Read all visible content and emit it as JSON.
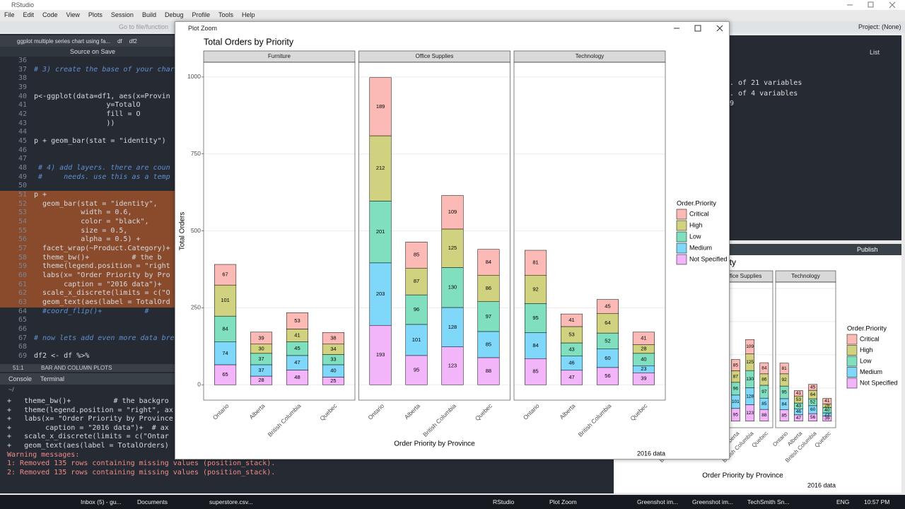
{
  "app_title": "RStudio",
  "menu": [
    "File",
    "Edit",
    "Code",
    "View",
    "Plots",
    "Session",
    "Build",
    "Debug",
    "Profile",
    "Tools",
    "Help"
  ],
  "toolbar": {
    "goto": "Go to file/function",
    "project": "Project: (None)"
  },
  "editor": {
    "tabs": [
      "ggplot multiple series chart using fa...",
      "df",
      "df2"
    ],
    "source_on_save": "Source on Save",
    "lines": [
      {
        "n": 36
      },
      {
        "n": 37,
        "code": "# 3) create the base of your char"
      },
      {
        "n": 38
      },
      {
        "n": 39
      },
      {
        "n": 40,
        "code": "p<-ggplot(data=df1, aes(x=Provin"
      },
      {
        "n": 41,
        "code": "                 y=TotalO"
      },
      {
        "n": 42,
        "code": "                 fill = O"
      },
      {
        "n": 43,
        "code": "                 ))"
      },
      {
        "n": 44
      },
      {
        "n": 45,
        "code": "p + geom_bar(stat = \"identity\")"
      },
      {
        "n": 46
      },
      {
        "n": 47
      },
      {
        "n": 48,
        "code": " # 4) add layers. there are coun"
      },
      {
        "n": 49,
        "code": " #     needs. use this as a temp"
      },
      {
        "n": 50
      },
      {
        "n": 51,
        "code": "p +",
        "selected": true
      },
      {
        "n": 52,
        "code": "  geom_bar(stat = \"identity\", ",
        "selected": true
      },
      {
        "n": 53,
        "code": "           width = 0.6,",
        "selected": true
      },
      {
        "n": 54,
        "code": "           color = \"black\",",
        "selected": true
      },
      {
        "n": 55,
        "code": "           size = 0.5,",
        "selected": true
      },
      {
        "n": 56,
        "code": "           alpha = 0.5) +",
        "selected": true
      },
      {
        "n": 57,
        "code": "  facet_wrap(~Product.Category)+",
        "selected": true
      },
      {
        "n": 58,
        "code": "  theme_bw()+          # the b",
        "selected": true
      },
      {
        "n": 59,
        "code": "  theme(legend.position = \"right",
        "selected": true
      },
      {
        "n": 60,
        "code": "  labs(x= \"Order Priority by Pro",
        "selected": true
      },
      {
        "n": 61,
        "code": "       caption = \"2016 data\")+",
        "selected": true
      },
      {
        "n": 62,
        "code": "  scale_x_discrete(limits = c(\"O",
        "selected": true
      },
      {
        "n": 63,
        "code": "  geom_text(aes(label = TotalOrd",
        "selected": true
      },
      {
        "n": 64,
        "code": "  #coord_flip()+          #"
      },
      {
        "n": 65
      },
      {
        "n": 66
      },
      {
        "n": 67,
        "code": "# now lets add even more data bre"
      },
      {
        "n": 68
      },
      {
        "n": 69,
        "code": "df2 <- df %>%"
      }
    ],
    "status": {
      "position": "51:1",
      "section": "BAR AND COLUMN PLOTS"
    }
  },
  "console": {
    "tabs": [
      "Console",
      "Terminal"
    ],
    "path": "~/",
    "lines": [
      {
        "text": "+   theme_bw()+          # the backgro"
      },
      {
        "text": "+   theme(legend.position = \"right\", ax"
      },
      {
        "text": "+   labs(x= \"Order Priority by Province"
      },
      {
        "text": "+        caption = \"2016 data\")+  # ax"
      },
      {
        "text": "+   scale_x_discrete(limits = c(\"Ontar"
      },
      {
        "text": "+   geom_text(aes(label = TotalOrders)"
      },
      {
        "text": "Warning messages:",
        "warning": true
      },
      {
        "text": "1: Removed 135 rows containing missing values (position_stack).",
        "warning": true
      },
      {
        "text": "2: Removed 135 rows containing missing values (position_stack).",
        "warning": true
      }
    ]
  },
  "environment": {
    "view": "List",
    "rows": [
      ". of 21 variables",
      ". of 4 variables",
      "9"
    ]
  },
  "viewer": {
    "publish": "Publish"
  },
  "plot_window": {
    "title": "Plot Zoom"
  },
  "chart_data": {
    "type": "bar",
    "stacked": true,
    "title": "Total Orders by Priority",
    "x_label": "Order Priority by Province",
    "y_label": "Total Orders",
    "caption": "2016 data",
    "legend_title": "Order.Priority",
    "categories": [
      "Ontario",
      "Alberta",
      "British Columbia",
      "Quebec"
    ],
    "ylim": [
      -50,
      1048
    ],
    "yticks": [
      0,
      250,
      500,
      750,
      1000
    ],
    "grid": true,
    "series": [
      {
        "name": "Critical",
        "color": "#fbbab6"
      },
      {
        "name": "High",
        "color": "#d1d27f"
      },
      {
        "name": "Low",
        "color": "#7fdfbe"
      },
      {
        "name": "Medium",
        "color": "#7fd7fa"
      },
      {
        "name": "Not Specified",
        "color": "#f3b5f9"
      }
    ],
    "facets": [
      {
        "name": "Furniture",
        "series": [
          {
            "values": [
              67,
              39,
              53,
              38
            ]
          },
          {
            "values": [
              101,
              30,
              41,
              34
            ]
          },
          {
            "values": [
              84,
              37,
              45,
              33
            ]
          },
          {
            "values": [
              74,
              37,
              47,
              40
            ]
          },
          {
            "values": [
              65,
              28,
              48,
              25
            ]
          }
        ]
      },
      {
        "name": "Office Supplies",
        "series": [
          {
            "values": [
              189,
              85,
              109,
              84
            ]
          },
          {
            "values": [
              212,
              87,
              125,
              86
            ]
          },
          {
            "values": [
              201,
              96,
              130,
              97
            ]
          },
          {
            "values": [
              203,
              101,
              128,
              85
            ]
          },
          {
            "values": [
              193,
              95,
              123,
              88
            ]
          }
        ]
      },
      {
        "name": "Technology",
        "series": [
          {
            "values": [
              81,
              41,
              45,
              41
            ]
          },
          {
            "values": [
              92,
              53,
              64,
              28
            ]
          },
          {
            "values": [
              95,
              43,
              52,
              40
            ]
          },
          {
            "values": [
              84,
              46,
              60,
              23
            ]
          },
          {
            "values": [
              85,
              47,
              56,
              39
            ]
          }
        ]
      }
    ]
  },
  "taskbar": [
    "Inbox (5) - gu...",
    "Documents",
    "superstore.csv...",
    "RStudio",
    "Plot Zoom",
    "Greenshot im...",
    "Greenshot im...",
    "TechSmith Sn...",
    "ENG",
    "10:57 PM"
  ]
}
